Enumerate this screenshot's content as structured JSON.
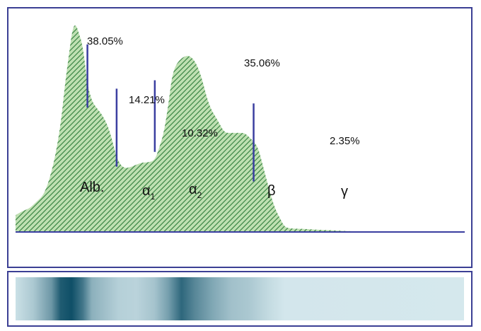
{
  "colors": {
    "frame": "#3b3f94",
    "divider": "#3a3ea0",
    "fill": "#bfe0b2",
    "hatch": "#2e7d3a",
    "band_light": "#dff0f4",
    "band_dark": "#0f4f67"
  },
  "chart_data": {
    "type": "area",
    "title": "",
    "xlabel": "",
    "ylabel": "",
    "grid": false,
    "legend": "none",
    "fractions": [
      {
        "name": "Alb.",
        "percent_label": "38.05%",
        "value": 38.05
      },
      {
        "name": "α",
        "subscript": "1",
        "percent_label": "14.21%",
        "value": 14.21
      },
      {
        "name": "α",
        "subscript": "2",
        "percent_label": "10.32%",
        "value": 10.32
      },
      {
        "name": "β",
        "percent_label": "35.06%",
        "value": 35.06
      },
      {
        "name": "γ",
        "percent_label": "2.35%",
        "value": 2.35
      }
    ],
    "x": [
      0,
      1.5,
      3,
      4.5,
      6.5,
      8.5,
      10,
      11,
      12,
      12.5,
      13,
      13.5,
      14,
      15,
      16,
      17,
      18,
      19.5,
      21,
      22.5,
      24,
      26,
      28,
      29.5,
      31,
      32,
      33,
      34,
      35,
      37,
      39,
      41,
      43,
      45,
      46.5,
      48,
      49.5,
      51,
      52,
      53,
      54,
      55,
      56,
      57,
      58,
      59,
      60,
      62,
      64,
      66,
      68,
      70,
      72,
      74,
      76,
      78,
      79,
      80,
      81,
      82,
      83.5,
      85,
      86.5,
      88,
      90,
      92,
      94,
      96,
      98,
      100
    ],
    "y": [
      0.08,
      0.1,
      0.11,
      0.14,
      0.18,
      0.32,
      0.5,
      0.7,
      0.86,
      0.94,
      0.98,
      0.98,
      0.95,
      0.88,
      0.7,
      0.62,
      0.59,
      0.55,
      0.48,
      0.35,
      0.3,
      0.31,
      0.33,
      0.33,
      0.34,
      0.4,
      0.47,
      0.6,
      0.77,
      0.83,
      0.84,
      0.77,
      0.6,
      0.53,
      0.47,
      0.47,
      0.47,
      0.47,
      0.45,
      0.43,
      0.4,
      0.32,
      0.24,
      0.16,
      0.1,
      0.06,
      0.02,
      0.015,
      0.015,
      0.012,
      0.01,
      0.008,
      0.006,
      0.004,
      0.003,
      0.002,
      0.002,
      0.001,
      0.001,
      0,
      0,
      0,
      0,
      0,
      0,
      0,
      0,
      0,
      0,
      0
    ],
    "dividers": [
      {
        "x": 16,
        "top": 0.89,
        "bottom": 0.59
      },
      {
        "x": 22.5,
        "top": 0.68,
        "bottom": 0.31
      },
      {
        "x": 31,
        "top": 0.72,
        "bottom": 0.38
      },
      {
        "x": 53,
        "top": 0.61,
        "bottom": 0.24
      }
    ],
    "ylim": [
      0,
      1
    ],
    "xlim": [
      0,
      100
    ]
  },
  "band": {
    "intensity": [
      {
        "x": 0,
        "v": 0.1
      },
      {
        "x": 4,
        "v": 0.25
      },
      {
        "x": 8,
        "v": 0.55
      },
      {
        "x": 10,
        "v": 0.92
      },
      {
        "x": 12.5,
        "v": 1.0
      },
      {
        "x": 15,
        "v": 0.75
      },
      {
        "x": 17,
        "v": 0.4
      },
      {
        "x": 20,
        "v": 0.3
      },
      {
        "x": 23,
        "v": 0.2
      },
      {
        "x": 27,
        "v": 0.18
      },
      {
        "x": 31,
        "v": 0.28
      },
      {
        "x": 34,
        "v": 0.5
      },
      {
        "x": 37,
        "v": 0.85
      },
      {
        "x": 40,
        "v": 0.65
      },
      {
        "x": 44,
        "v": 0.45
      },
      {
        "x": 48,
        "v": 0.3
      },
      {
        "x": 52,
        "v": 0.25
      },
      {
        "x": 57,
        "v": 0.12
      },
      {
        "x": 60,
        "v": 0.06
      },
      {
        "x": 100,
        "v": 0.05
      }
    ]
  }
}
